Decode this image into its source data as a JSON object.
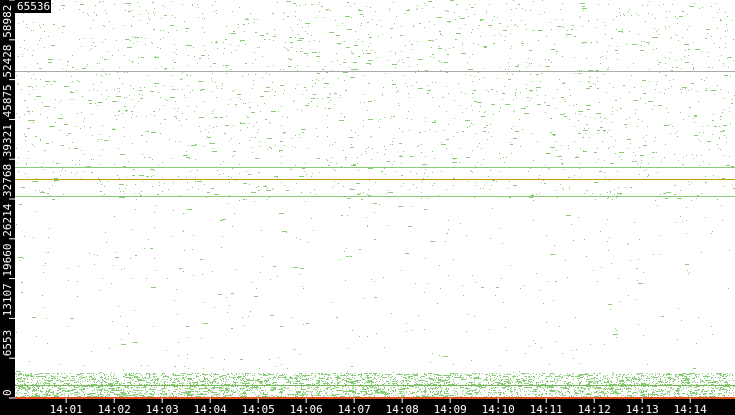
{
  "chart_data": {
    "type": "scatter",
    "title": "",
    "xlabel": "",
    "ylabel": "",
    "xlim": [
      "13:59:56",
      "14:14:56"
    ],
    "ylim": [
      0,
      65536
    ],
    "x_ticks": [
      "14:01",
      "14:02",
      "14:03",
      "14:04",
      "14:05",
      "14:06",
      "14:07",
      "14:08",
      "14:09",
      "14:10",
      "14:11",
      "14:12",
      "14:13",
      "14:14"
    ],
    "y_ticks": [
      0,
      6553,
      13107,
      19660,
      26214,
      32768,
      39321,
      45875,
      52428,
      58982,
      65536
    ],
    "grid": false,
    "background": "#ffffff",
    "axis_background": "#000000",
    "point_color": "#88cc77",
    "highlight_color": "#c8a000",
    "baseline_color": "#e05020",
    "density_regions": [
      {
        "y_range": [
          0,
          4200
        ],
        "density": "very high"
      },
      {
        "y_range": [
          32768,
          65536
        ],
        "density": "medium"
      },
      {
        "y_range": [
          4200,
          32768
        ],
        "density": "low"
      }
    ],
    "horizontal_lines": [
      {
        "y": 35900,
        "color": "#c8a000"
      },
      {
        "y": 37800,
        "color": "#88cc77"
      },
      {
        "y": 33100,
        "color": "#88cc77"
      },
      {
        "y": 53700,
        "color": "#aaaaaa"
      },
      {
        "y": 1900,
        "color": "#77bb55"
      },
      {
        "y": 0,
        "color": "#e05020"
      }
    ]
  }
}
